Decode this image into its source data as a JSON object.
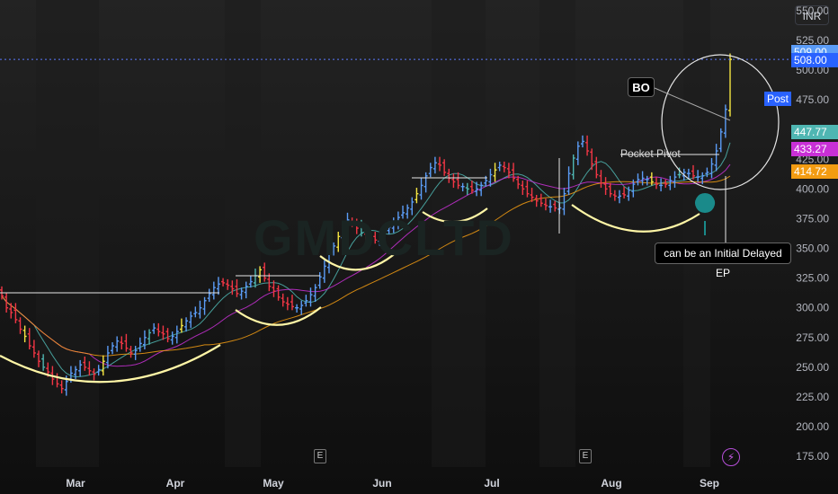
{
  "currency": "INR",
  "watermark": "GMDCLTD",
  "chart_data": {
    "type": "candlestick",
    "x_labels": [
      "Mar",
      "Apr",
      "May",
      "Jun",
      "Jul",
      "Aug",
      "Sep"
    ],
    "y_ticks": [
      175,
      200,
      225,
      250,
      275,
      300,
      325,
      350,
      375,
      400,
      425,
      450,
      475,
      500,
      525,
      550
    ],
    "y_tick_labels": [
      "175.00",
      "200.00",
      "225.00",
      "250.00",
      "275.00",
      "300.00",
      "325.00",
      "350.00",
      "375.00",
      "400.00",
      "425.00",
      "450.00",
      "475.00",
      "500.00",
      "525.00",
      "550.00"
    ],
    "ylim": [
      166,
      559
    ],
    "close_series": [
      310,
      300,
      296,
      290,
      282,
      276,
      268,
      262,
      255,
      250,
      246,
      240,
      236,
      232,
      238,
      245,
      248,
      252,
      250,
      247,
      244,
      248,
      255,
      262,
      268,
      272,
      270,
      266,
      262,
      264,
      270,
      275,
      279,
      283,
      280,
      278,
      274,
      276,
      280,
      285,
      289,
      293,
      296,
      300,
      306,
      312,
      317,
      320,
      321,
      319,
      316,
      312,
      314,
      318,
      322,
      327,
      332,
      325,
      318,
      314,
      309,
      305,
      303,
      301,
      300,
      302,
      306,
      311,
      317,
      326,
      335,
      345,
      352,
      360,
      368,
      374,
      372,
      367,
      363,
      360,
      358,
      357,
      359,
      363,
      368,
      372,
      376,
      380,
      384,
      389,
      396,
      403,
      411,
      418,
      422,
      420,
      414,
      409,
      406,
      403,
      402,
      400,
      399,
      400,
      403,
      407,
      412,
      416,
      420,
      418,
      414,
      409,
      404,
      400,
      396,
      393,
      390,
      388,
      386,
      385,
      384,
      384,
      396,
      413,
      426,
      436,
      440,
      432,
      421,
      412,
      405,
      400,
      396,
      394,
      394,
      395,
      399,
      404,
      408,
      409,
      408,
      406,
      404,
      403,
      404,
      407,
      410,
      412,
      414,
      413,
      411,
      410,
      411,
      414,
      421,
      432,
      448,
      467,
      509
    ],
    "prices_on_axis": [
      {
        "label": "509.00",
        "value": 509,
        "color": "#5b9cf6"
      },
      {
        "label": "508.00",
        "value": 508,
        "color": "#2962ff"
      },
      {
        "label": "447.77",
        "value": 447.77,
        "color": "#4fb6b2"
      },
      {
        "label": "433.27",
        "value": 433.27,
        "color": "#c930d6"
      },
      {
        "label": "414.72",
        "value": 414.72,
        "color": "#f39c12"
      }
    ],
    "post_label": "Post",
    "annotations": {
      "bo": "BO",
      "pocket_pivot": "Pocket Pivot",
      "note": "can be an Initial Delayed EP",
      "earnings": [
        "E",
        "E"
      ]
    },
    "colors": {
      "up": "#5b9cf6",
      "down": "#f23645",
      "pivot": "#f5e642",
      "ma_fast": "#4fb6b2",
      "ma_mid": "#c930d6",
      "ma_slow": "#f39c12",
      "arc": "#fff6a6",
      "last_line": "#5b7bff"
    }
  }
}
